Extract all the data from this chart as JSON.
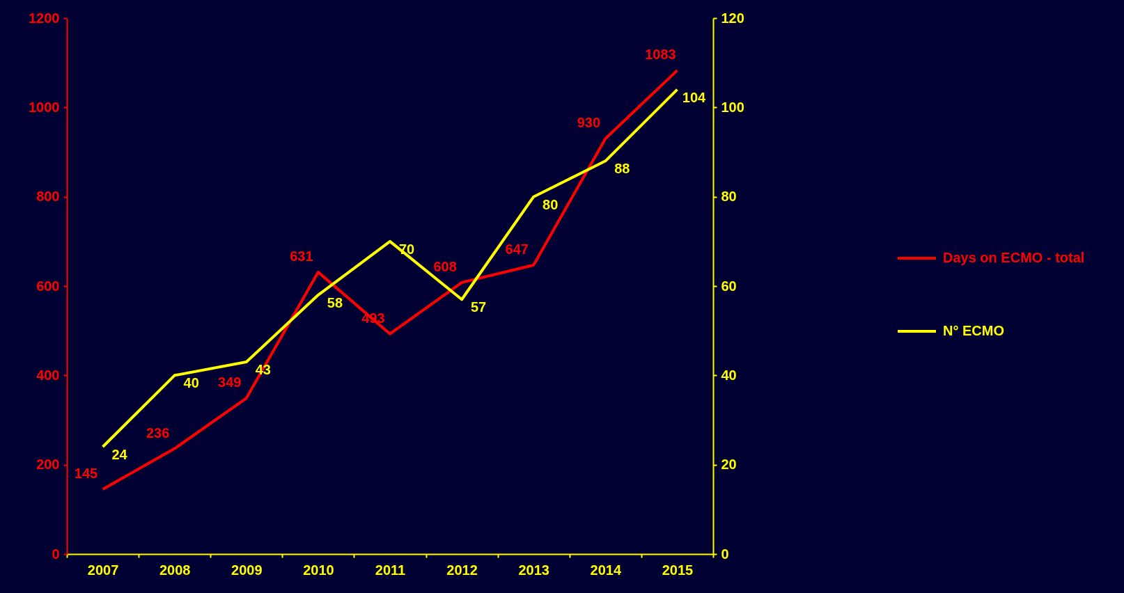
{
  "chart_data": {
    "type": "line",
    "categories": [
      "2007",
      "2008",
      "2009",
      "2010",
      "2011",
      "2012",
      "2013",
      "2014",
      "2015"
    ],
    "series": [
      {
        "name": "Days on ECMO - total",
        "color": "#ff0000",
        "values": [
          145,
          236,
          349,
          631,
          493,
          608,
          647,
          930,
          1083
        ]
      },
      {
        "name": "N° ECMO",
        "color": "#ffff00",
        "axis": "y2",
        "values": [
          24,
          40,
          43,
          58,
          70,
          57,
          80,
          88,
          104
        ]
      }
    ],
    "ylim": [
      0,
      1200
    ],
    "yticks": [
      0,
      200,
      400,
      600,
      800,
      1000,
      1200
    ],
    "y2lim": [
      0,
      120
    ],
    "y2ticks": [
      0,
      20,
      40,
      60,
      80,
      100,
      120
    ],
    "data_labels": true,
    "grid": false,
    "legend": "right",
    "marker": "none",
    "line_style": "solid"
  }
}
